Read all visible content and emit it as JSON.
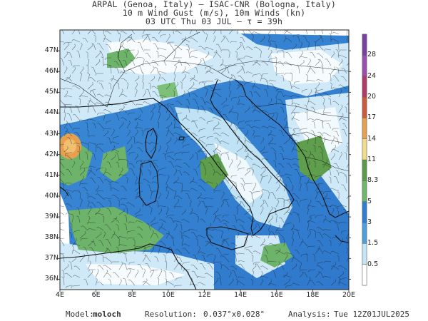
{
  "header": {
    "line1": "ARPAL (Genoa, Italy)  —  ISAC-CNR (Bologna, Italy)",
    "line2": "10 m Wind Gust (m/s), 10m Winds (kn)",
    "line3": "03 UTC Thu 03 JUL  —  τ = 39h"
  },
  "map": {
    "lat_labels": [
      "47N",
      "46N",
      "45N",
      "44N",
      "43N",
      "42N",
      "41N",
      "40N",
      "39N",
      "38N",
      "37N",
      "36N"
    ],
    "lon_labels": [
      "4E",
      "6E",
      "8E",
      "10E",
      "12E",
      "14E",
      "16E",
      "18E",
      "20E"
    ],
    "lat_range": [
      35.5,
      48
    ],
    "lon_range": [
      4,
      20
    ],
    "watermark": "ARPAL"
  },
  "colorbar": {
    "labels": [
      "28",
      "24",
      "20",
      "17",
      "14",
      "11",
      "8.3",
      "5",
      "3",
      "1.5",
      "0.5"
    ],
    "colors": [
      "#ffffff",
      "#c3e6f7",
      "#4f9fdc",
      "#2f7fd0",
      "#6fb86a",
      "#5a9a48",
      "#f0dc8c",
      "#e6a050",
      "#cc5a3c",
      "#b03a6a",
      "#9a4fb0",
      "#7a3fa0"
    ]
  },
  "footer": {
    "model_label": "Model:",
    "model_value": "moloch",
    "resolution_label": "Resolution:",
    "resolution_value": "0.037°x0.028°",
    "analysis_label": "Analysis:",
    "analysis_value": "Tue 12Z01JUL2025"
  }
}
